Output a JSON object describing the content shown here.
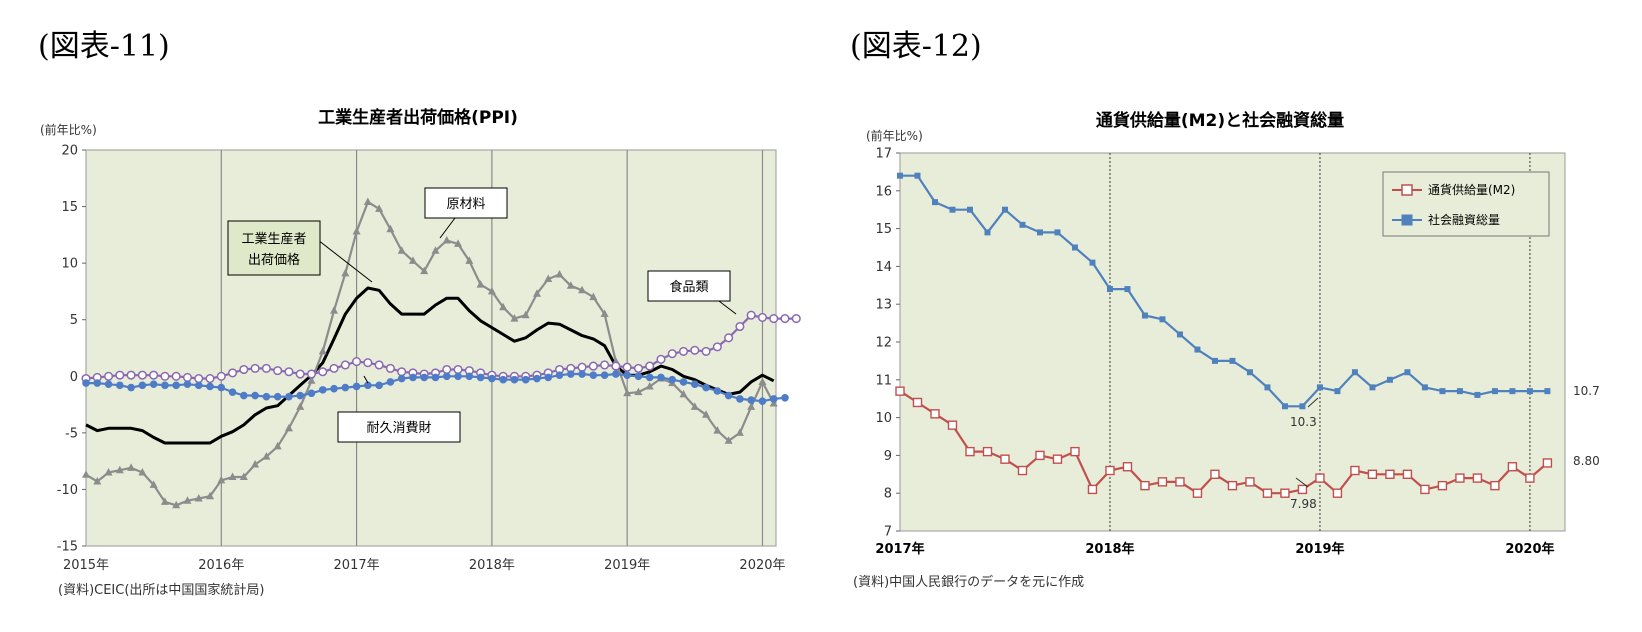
{
  "figures": [
    {
      "label": "(図表-11)"
    },
    {
      "label": "(図表-12)"
    }
  ],
  "chart_data": [
    {
      "type": "line",
      "title": "工業生産者出荷価格(PPI)",
      "ylabel": "(前年比%)",
      "xlabel": "",
      "ylim": [
        -15,
        20
      ],
      "yticks": [
        20,
        15,
        10,
        5,
        0,
        -5,
        -10,
        -15
      ],
      "xlim": [
        2015.0,
        2020.1
      ],
      "x_tick_labels": [
        {
          "label": "2015年",
          "value": 2015
        },
        {
          "label": "2016年",
          "value": 2016
        },
        {
          "label": "2017年",
          "value": 2017
        },
        {
          "label": "2018年",
          "value": 2018
        },
        {
          "label": "2019年",
          "value": 2019
        },
        {
          "label": "2020年",
          "value": 2020
        }
      ],
      "grid": "vertical year lines",
      "background": "#e8edd9",
      "source": "(資料)CEIC(出所は中国国家統計局)",
      "series": [
        {
          "name": "工業生産者出荷価格",
          "color": "#000000",
          "marker": "none",
          "start": 2015.0,
          "step": 0.08333,
          "values": [
            -4.3,
            -4.8,
            -4.6,
            -4.6,
            -4.6,
            -4.8,
            -5.4,
            -5.9,
            -5.9,
            -5.9,
            -5.9,
            -5.9,
            -5.3,
            -4.9,
            -4.3,
            -3.4,
            -2.8,
            -2.6,
            -1.7,
            -0.8,
            0.1,
            1.2,
            3.3,
            5.5,
            6.9,
            7.8,
            7.6,
            6.4,
            5.5,
            5.5,
            5.5,
            6.3,
            6.9,
            6.9,
            5.8,
            4.9,
            4.3,
            3.7,
            3.1,
            3.4,
            4.1,
            4.7,
            4.6,
            4.1,
            3.6,
            3.3,
            2.7,
            0.9,
            0.1,
            0.1,
            0.4,
            0.9,
            0.6,
            0.0,
            -0.3,
            -0.8,
            -1.2,
            -1.6,
            -1.4,
            -0.5,
            0.1,
            -0.4
          ]
        },
        {
          "name": "原材料",
          "color": "#8c8c8c",
          "marker": "triangle",
          "start": 2015.0,
          "step": 0.08333,
          "values": [
            -8.7,
            -9.3,
            -8.5,
            -8.3,
            -8.1,
            -8.5,
            -9.6,
            -11.1,
            -11.4,
            -11.0,
            -10.8,
            -10.6,
            -9.2,
            -8.9,
            -8.9,
            -7.8,
            -7.1,
            -6.2,
            -4.6,
            -2.7,
            -0.4,
            2.2,
            5.8,
            9.1,
            12.8,
            15.4,
            14.8,
            13.0,
            11.1,
            10.2,
            9.3,
            11.1,
            12.0,
            11.7,
            10.2,
            8.1,
            7.5,
            6.1,
            5.1,
            5.4,
            7.3,
            8.6,
            9.0,
            8.0,
            7.6,
            7.0,
            5.5,
            1.3,
            -1.5,
            -1.4,
            -0.9,
            -0.2,
            -0.6,
            -1.6,
            -2.7,
            -3.4,
            -4.8,
            -5.7,
            -5.0,
            -2.7,
            -0.5,
            -2.4
          ]
        },
        {
          "name": "食品類",
          "color": "#8a69b0",
          "marker": "circle-open",
          "start": 2015.0,
          "step": 0.08333,
          "values": [
            -0.2,
            -0.1,
            0.0,
            0.1,
            0.1,
            0.1,
            0.1,
            0.0,
            0.0,
            -0.1,
            -0.2,
            -0.2,
            0.0,
            0.3,
            0.6,
            0.7,
            0.7,
            0.5,
            0.4,
            0.2,
            0.2,
            0.4,
            0.7,
            1.0,
            1.3,
            1.2,
            1.0,
            0.7,
            0.4,
            0.3,
            0.2,
            0.3,
            0.6,
            0.6,
            0.5,
            0.3,
            0.1,
            0.0,
            0.0,
            0.0,
            0.1,
            0.3,
            0.6,
            0.7,
            0.8,
            0.9,
            1.0,
            0.9,
            0.8,
            0.7,
            0.9,
            1.5,
            2.0,
            2.2,
            2.3,
            2.2,
            2.6,
            3.4,
            4.4,
            5.4,
            5.2,
            5.1,
            5.1,
            5.1
          ]
        },
        {
          "name": "耐久消費財",
          "color": "#4f7cc7",
          "marker": "circle",
          "start": 2015.0,
          "step": 0.08333,
          "values": [
            -0.6,
            -0.6,
            -0.7,
            -0.8,
            -1.0,
            -0.8,
            -0.7,
            -0.8,
            -0.8,
            -0.7,
            -0.8,
            -0.9,
            -1.0,
            -1.4,
            -1.7,
            -1.7,
            -1.8,
            -1.8,
            -1.8,
            -1.7,
            -1.5,
            -1.2,
            -1.1,
            -1.0,
            -0.9,
            -0.8,
            -0.8,
            -0.5,
            -0.2,
            -0.1,
            -0.1,
            -0.1,
            0.0,
            0.0,
            0.0,
            -0.1,
            -0.2,
            -0.3,
            -0.3,
            -0.3,
            -0.2,
            -0.1,
            0.1,
            0.2,
            0.2,
            0.1,
            0.1,
            0.2,
            0.1,
            0.0,
            -0.1,
            -0.1,
            -0.3,
            -0.5,
            -0.7,
            -1.0,
            -1.3,
            -1.7,
            -2.0,
            -2.1,
            -2.2,
            -2.0,
            -1.9
          ]
        }
      ],
      "callouts": [
        {
          "text": "原材料",
          "series": "原材料"
        },
        {
          "text": "工業生産者出荷価格",
          "lines": [
            "工業生産者",
            "出荷価格"
          ],
          "series": "工業生産者出荷価格"
        },
        {
          "text": "食品類",
          "series": "食品類"
        },
        {
          "text": "耐久消費財",
          "series": "耐久消費財"
        }
      ]
    },
    {
      "type": "line",
      "title": "通貨供給量(M2)と社会融資総量",
      "ylabel": "(前年比%)",
      "xlabel": "",
      "ylim": [
        7,
        17
      ],
      "yticks": [
        17,
        16,
        15,
        14,
        13,
        12,
        11,
        10,
        9,
        8,
        7
      ],
      "xlim": [
        2017.0,
        2020.167
      ],
      "x_tick_labels": [
        {
          "label": "2017年",
          "value": 2017
        },
        {
          "label": "2018年",
          "value": 2018
        },
        {
          "label": "2019年",
          "value": 2019
        },
        {
          "label": "2020年",
          "value": 2020
        }
      ],
      "grid": "dotted vertical year lines",
      "background": "#e8edd9",
      "legend": "top-right",
      "source": "(資料)中国人民銀行のデータを元に作成",
      "series": [
        {
          "name": "通貨供給量(M2)",
          "color": "#c0504d",
          "marker": "square-open",
          "start": 2017.0,
          "step": 0.08333,
          "values": [
            10.7,
            10.4,
            10.1,
            9.8,
            9.1,
            9.1,
            8.9,
            8.6,
            9.0,
            8.9,
            9.1,
            8.1,
            8.6,
            8.7,
            8.2,
            8.3,
            8.3,
            8.0,
            8.5,
            8.2,
            8.3,
            8.0,
            8.0,
            8.1,
            8.4,
            8.0,
            8.6,
            8.5,
            8.5,
            8.5,
            8.1,
            8.2,
            8.4,
            8.4,
            8.2,
            8.7,
            8.4,
            8.8
          ]
        },
        {
          "name": "社会融資総量",
          "color": "#4f81bd",
          "marker": "square",
          "start": 2017.0,
          "step": 0.08333,
          "values": [
            16.4,
            16.4,
            15.7,
            15.5,
            15.5,
            14.9,
            15.5,
            15.1,
            14.9,
            14.9,
            14.5,
            14.1,
            13.4,
            13.4,
            12.7,
            12.6,
            12.2,
            11.8,
            11.5,
            11.5,
            11.2,
            10.8,
            10.3,
            10.3,
            10.8,
            10.7,
            11.2,
            10.8,
            11.0,
            11.2,
            10.8,
            10.7,
            10.7,
            10.6,
            10.7,
            10.7,
            10.7,
            10.7
          ]
        }
      ],
      "annotations": [
        {
          "text": "10.7",
          "series": "社会融資総量"
        },
        {
          "text": "10.3",
          "series": "社会融資総量"
        },
        {
          "text": "8.80",
          "series": "通貨供給量(M2)"
        },
        {
          "text": "7.98",
          "series": "通貨供給量(M2)"
        }
      ]
    }
  ]
}
